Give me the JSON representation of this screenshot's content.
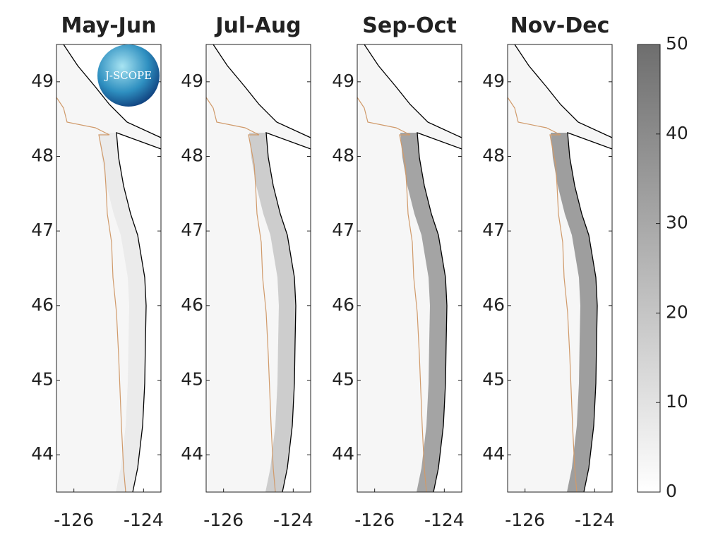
{
  "panels": [
    {
      "title": "May-Jun"
    },
    {
      "title": "Jul-Aug"
    },
    {
      "title": "Sep-Oct"
    },
    {
      "title": "Nov-Dec"
    }
  ],
  "ylim": [
    43.5,
    49.5
  ],
  "yticks": [
    44,
    45,
    46,
    47,
    48,
    49
  ],
  "xlim": [
    -126.5,
    -123.5
  ],
  "xticks": [
    -126,
    -124
  ],
  "colorbar": {
    "lim": [
      0,
      50
    ],
    "ticks": [
      0,
      10,
      20,
      30,
      40,
      50
    ]
  },
  "logo": "J-SCOPE"
}
